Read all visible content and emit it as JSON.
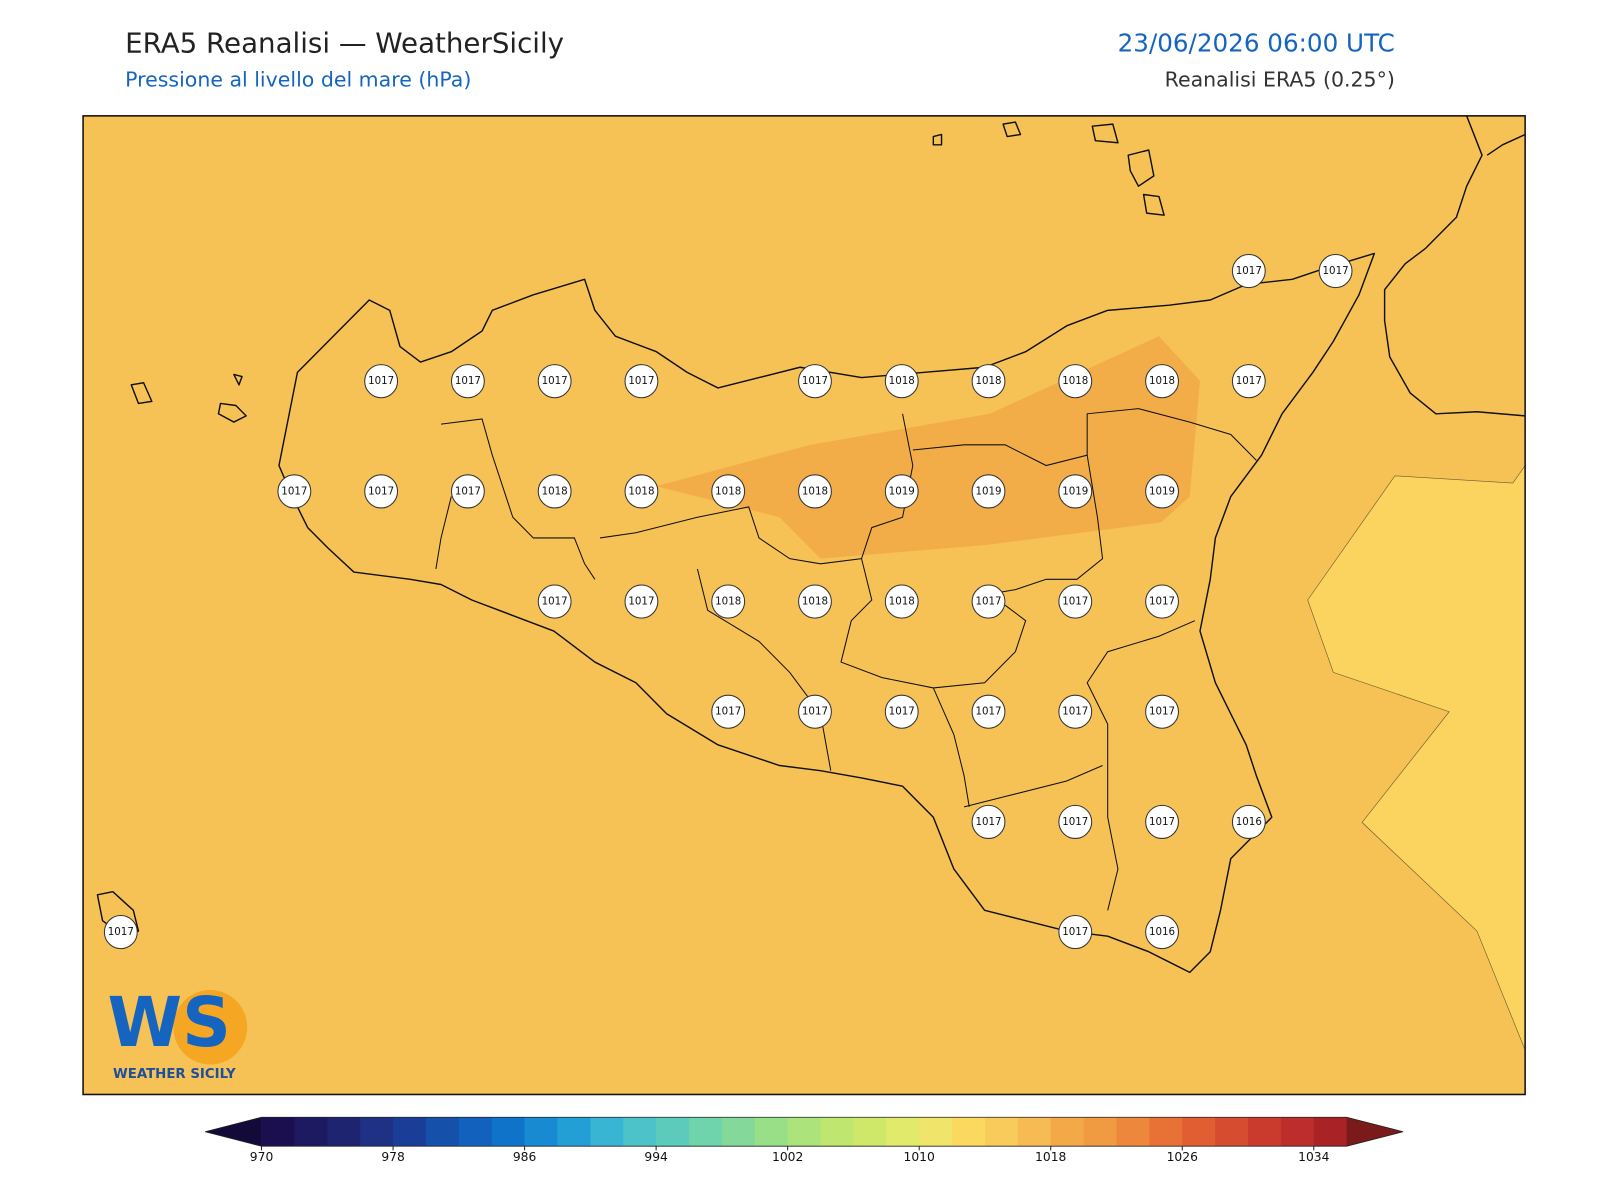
{
  "header": {
    "title": "ERA5 Reanalisi — WeatherSicily",
    "subtitle": "Pressione al livello del mare (hPa)",
    "datetime": "23/06/2026 06:00 UTC",
    "source": "Reanalisi ERA5 (0.25°)"
  },
  "stations": [
    1017,
    1017,
    1017,
    1017,
    1017,
    1017,
    1017,
    1018,
    1018,
    1018,
    1018,
    1017,
    1017,
    1017,
    1017,
    1018,
    1018,
    1018,
    1018,
    1019,
    1019,
    1019,
    1019,
    1017,
    1017,
    1018,
    1018,
    1018,
    1017,
    1017,
    1017,
    1017,
    1017,
    1017,
    1017,
    1017,
    1017,
    1017,
    1017,
    1017,
    1016,
    1017,
    1017,
    1016
  ],
  "colorbar": {
    "range": [
      970,
      1036
    ],
    "ticks": [
      970,
      978,
      986,
      994,
      1002,
      1010,
      1018,
      1026,
      1034
    ],
    "colors": [
      "#1b0f4f",
      "#1d1a62",
      "#1f2470",
      "#1f3184",
      "#1a3e98",
      "#1550ab",
      "#1262bd",
      "#0f74c9",
      "#178ad1",
      "#22a0d6",
      "#37b5d3",
      "#4cc2c9",
      "#5dcbbc",
      "#6fd3ab",
      "#84d99a",
      "#98df88",
      "#ace37a",
      "#bfe66e",
      "#d0e86a",
      "#e1ea6a",
      "#f0e46a",
      "#fbd95f",
      "#f9cb5a",
      "#f6bb52",
      "#f3a948",
      "#f09a41",
      "#ed873b",
      "#e87236",
      "#e05e32",
      "#d64c30",
      "#ca3b2e",
      "#bd2d2b",
      "#a82226"
    ],
    "under": "#140a3a",
    "over": "#7a1a1a"
  },
  "logo": {
    "mark": "WS",
    "name": "WEATHER SICILY"
  }
}
